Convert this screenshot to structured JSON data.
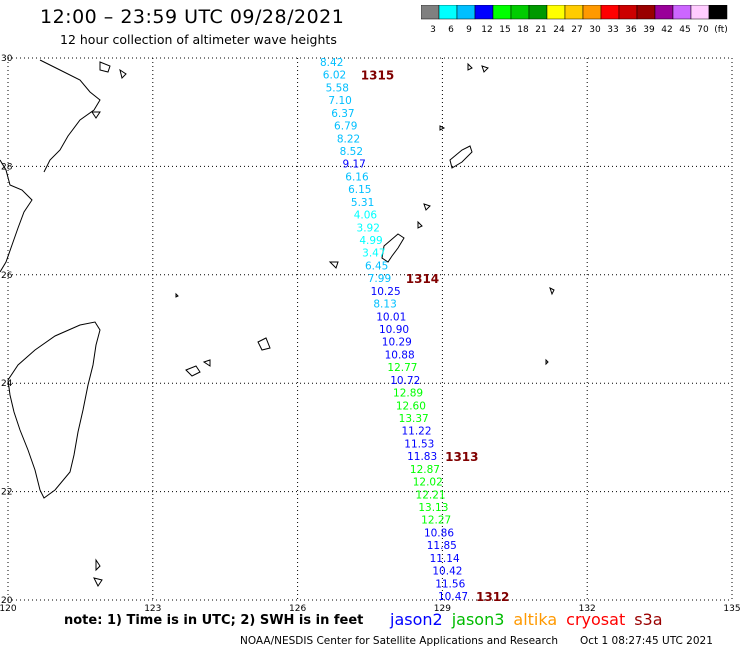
{
  "header": {
    "title": "12:00 – 23:59 UTC 09/28/2021",
    "subtitle": "12 hour collection of altimeter wave heights"
  },
  "color_scale": {
    "labels": [
      "3",
      "6",
      "9",
      "12",
      "15",
      "18",
      "21",
      "24",
      "27",
      "30",
      "33",
      "36",
      "39",
      "42",
      "45",
      "70",
      "(ft)"
    ],
    "colors": [
      "#808080",
      "#00ffff",
      "#00bfff",
      "#0000ff",
      "#00ff00",
      "#00cc00",
      "#009900",
      "#ffff00",
      "#ffcc00",
      "#ff9900",
      "#ff0000",
      "#cc0000",
      "#990000",
      "#990099",
      "#cc66ff",
      "#ffccff",
      "#000000"
    ]
  },
  "axes": {
    "lon_labels": [
      "120",
      "123",
      "126",
      "129",
      "132",
      "135"
    ],
    "lat_labels": [
      "30",
      "28",
      "26",
      "24",
      "22",
      "20"
    ]
  },
  "track": {
    "readings": [
      {
        "v": "8.42",
        "c": "#00bfff"
      },
      {
        "v": "6.02",
        "c": "#00bfff"
      },
      {
        "v": "5.58",
        "c": "#00bfff"
      },
      {
        "v": "7.10",
        "c": "#00bfff"
      },
      {
        "v": "6.37",
        "c": "#00bfff"
      },
      {
        "v": "6.79",
        "c": "#00bfff"
      },
      {
        "v": "8.22",
        "c": "#00bfff"
      },
      {
        "v": "8.52",
        "c": "#00bfff"
      },
      {
        "v": "9.17",
        "c": "#0000ff"
      },
      {
        "v": "6.16",
        "c": "#00bfff"
      },
      {
        "v": "6.15",
        "c": "#00bfff"
      },
      {
        "v": "5.31",
        "c": "#00bfff"
      },
      {
        "v": "4.06",
        "c": "#00ffff"
      },
      {
        "v": "3.92",
        "c": "#00ffff"
      },
      {
        "v": "4.99",
        "c": "#00ffff"
      },
      {
        "v": "3.47",
        "c": "#00ffff"
      },
      {
        "v": "6.45",
        "c": "#00bfff"
      },
      {
        "v": "7.99",
        "c": "#00bfff"
      },
      {
        "v": "10.25",
        "c": "#0000ff"
      },
      {
        "v": "8.13",
        "c": "#00bfff"
      },
      {
        "v": "10.01",
        "c": "#0000ff"
      },
      {
        "v": "10.90",
        "c": "#0000ff"
      },
      {
        "v": "10.29",
        "c": "#0000ff"
      },
      {
        "v": "10.88",
        "c": "#0000ff"
      },
      {
        "v": "12.77",
        "c": "#00ff00"
      },
      {
        "v": "10.72",
        "c": "#0000ff"
      },
      {
        "v": "12.89",
        "c": "#00ff00"
      },
      {
        "v": "12.60",
        "c": "#00ff00"
      },
      {
        "v": "13.37",
        "c": "#00ff00"
      },
      {
        "v": "11.22",
        "c": "#0000ff"
      },
      {
        "v": "11.53",
        "c": "#0000ff"
      },
      {
        "v": "11.83",
        "c": "#0000ff"
      },
      {
        "v": "12.87",
        "c": "#00ff00"
      },
      {
        "v": "12.02",
        "c": "#00ff00"
      },
      {
        "v": "12.21",
        "c": "#00ff00"
      },
      {
        "v": "13.13",
        "c": "#00ff00"
      },
      {
        "v": "12.27",
        "c": "#00ff00"
      },
      {
        "v": "10.86",
        "c": "#0000ff"
      },
      {
        "v": "11.85",
        "c": "#0000ff"
      },
      {
        "v": "11.14",
        "c": "#0000ff"
      },
      {
        "v": "10.42",
        "c": "#0000ff"
      },
      {
        "v": "11.56",
        "c": "#0000ff"
      },
      {
        "v": "10.47",
        "c": "#0000ff"
      }
    ],
    "time_marks": [
      "1315",
      "1314",
      "1313",
      "1312"
    ],
    "time_color": "#800000"
  },
  "footer": {
    "note": "note:  1) Time is in UTC;  2) SWH is in feet",
    "satellites": [
      {
        "name": "jason2",
        "color": "#0000ff"
      },
      {
        "name": "jason3",
        "color": "#00bb00"
      },
      {
        "name": "altika",
        "color": "#ff9900"
      },
      {
        "name": "cryosat",
        "color": "#ff0000"
      },
      {
        "name": "s3a",
        "color": "#990000"
      }
    ],
    "credit": "NOAA/NESDIS Center for Satellite Applications and Research",
    "timestamp": "Oct  1 08:27:45 UTC 2021"
  }
}
